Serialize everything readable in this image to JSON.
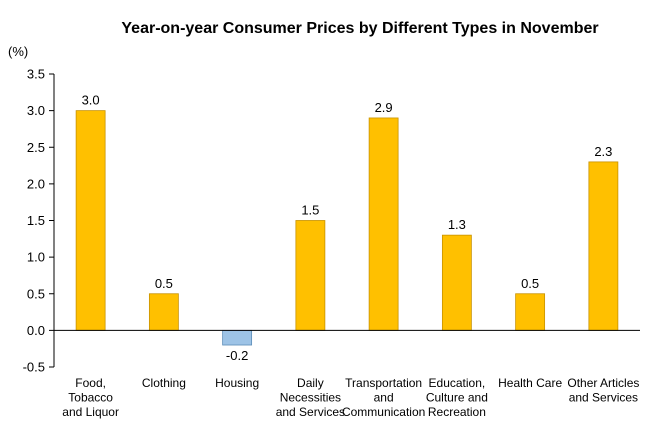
{
  "chart_data": {
    "type": "bar",
    "title": "Year-on-year Consumer Prices by Different Types in November",
    "ylabel": "(%)",
    "xlabel": "",
    "ylim": [
      -0.5,
      3.5
    ],
    "yticks": [
      "3.5",
      "3.0",
      "2.5",
      "2.0",
      "1.5",
      "1.0",
      "0.5",
      "0.0",
      "-0.5"
    ],
    "grid": false,
    "categories": [
      [
        "Food,",
        "Tobacco",
        "and Liquor"
      ],
      [
        "Clothing"
      ],
      [
        "Housing"
      ],
      [
        "Daily",
        "Necessities",
        "and Services"
      ],
      [
        "Transportation",
        "and",
        "Communication"
      ],
      [
        "Education,",
        "Culture and",
        "Recreation"
      ],
      [
        "Health Care"
      ],
      [
        "Other Articles",
        "and Services"
      ]
    ],
    "values": [
      3.0,
      0.5,
      -0.2,
      1.5,
      2.9,
      1.3,
      0.5,
      2.3
    ],
    "data_labels": [
      "3.0",
      "0.5",
      "-0.2",
      "1.5",
      "2.9",
      "1.3",
      "0.5",
      "2.3"
    ],
    "colors": {
      "positive": "#FFC000",
      "positive_border": "#C89200",
      "negative": "#9DC3E6",
      "negative_border": "#5B8DB8"
    }
  }
}
